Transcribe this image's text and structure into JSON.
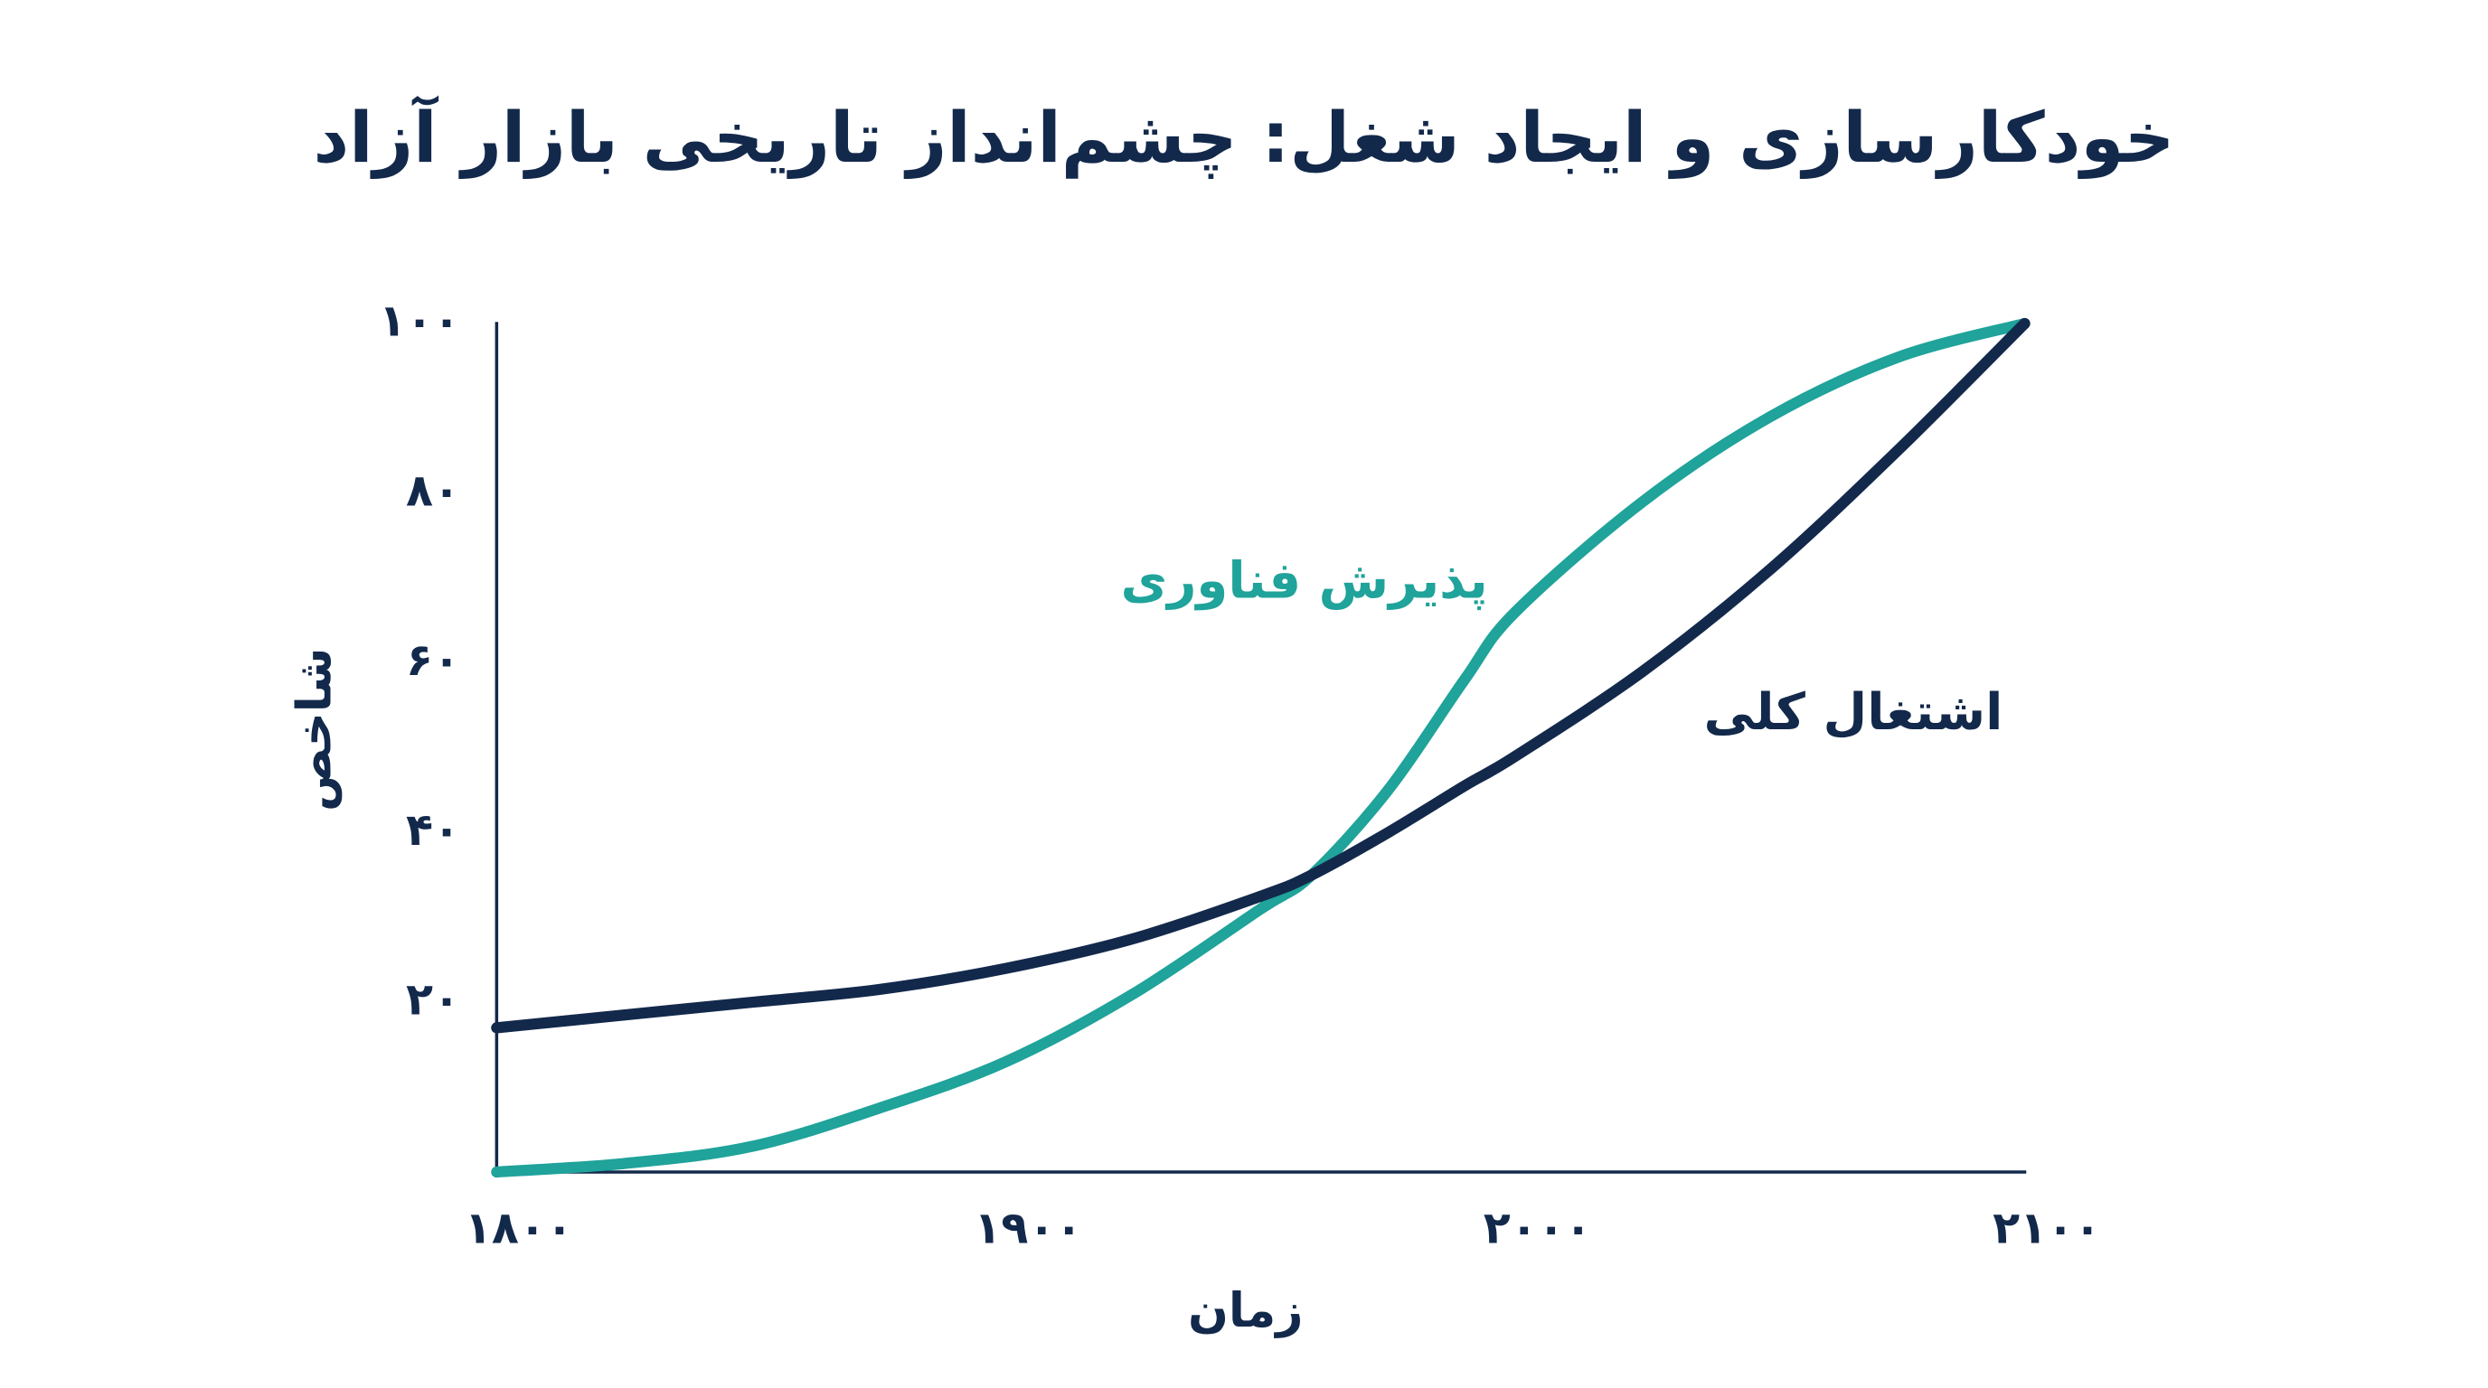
{
  "chart_data": {
    "type": "line",
    "title": "خودکارسازی و ایجاد شغل: چشم‌انداز تاریخی بازار آزاد",
    "x_label": "زمان",
    "y_label": "شاخص",
    "x": [
      1800,
      1825,
      1850,
      1875,
      1900,
      1925,
      1950,
      1960,
      1975,
      1990,
      2000,
      2025,
      2050,
      2075,
      2100
    ],
    "series": [
      {
        "name": "پذیرش فناوری",
        "color": "#1fa39a",
        "values": [
          0,
          1,
          3,
          7.5,
          13,
          21,
          31,
          35,
          45,
          58,
          66,
          79,
          89,
          96,
          100
        ]
      },
      {
        "name": "اشتغال کلی",
        "color": "#13294b",
        "values": [
          17,
          18.5,
          20,
          21.5,
          24,
          27.5,
          32.5,
          35,
          40,
          45.5,
          49,
          59,
          71,
          85,
          100
        ]
      }
    ],
    "xlim": [
      1800,
      2100
    ],
    "xticks": [
      {
        "value": 1800,
        "label": "۱۸۰۰"
      },
      {
        "value": 1900,
        "label": "۱۹۰۰"
      },
      {
        "value": 2000,
        "label": "۲۰۰۰"
      },
      {
        "value": 2100,
        "label": "۲۱۰۰"
      }
    ],
    "ylim": [
      0,
      100
    ],
    "yticks": [
      {
        "value": 20,
        "label": "۲۰"
      },
      {
        "value": 40,
        "label": "۴۰"
      },
      {
        "value": 60,
        "label": "۶۰"
      },
      {
        "value": 80,
        "label": "۸۰"
      },
      {
        "value": 100,
        "label": "۱۰۰"
      }
    ]
  }
}
